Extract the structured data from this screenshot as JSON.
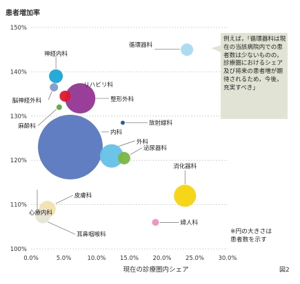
{
  "chart_data": {
    "type": "scatter",
    "title": "",
    "ylabel": "患者増加率",
    "xlabel": "現在の診療圏内シェア",
    "figure_label": "図2",
    "xlim": [
      0,
      30
    ],
    "ylim": [
      100,
      150
    ],
    "x_ticks": [
      "0.0%",
      "5.0%",
      "10.0%",
      "15.0%",
      "20.0%",
      "25.0%",
      "30.0%"
    ],
    "y_ticks": [
      "100%",
      "110%",
      "120%",
      "130%",
      "140%",
      "150%"
    ],
    "grid": true,
    "annotation": "例えば，「循環器科は現在の当該病院内での患者数は少ないものの，診療圏におけるシェア及び将来の患者増が期待されるため，今後，充実すべき」",
    "note": "※円の大きさは\n患者数を示す",
    "points": [
      {
        "name": "循環器科",
        "x": 23.8,
        "y": 145.0,
        "r": 9,
        "color": "#a9d9ee"
      },
      {
        "name": "神経内科",
        "x": 3.8,
        "y": 139.0,
        "r": 10,
        "color": "#1aa6d6"
      },
      {
        "name": "脳神経外科",
        "x": 3.5,
        "y": 136.5,
        "r": 6,
        "color": "#7f9bc8"
      },
      {
        "name": "リハビリ科",
        "x": 5.2,
        "y": 134.5,
        "r": 8,
        "color": "#e3172c"
      },
      {
        "name": "整形外科",
        "x": 7.5,
        "y": 134.0,
        "r": 22,
        "color": "#933594"
      },
      {
        "name": "麻酔科",
        "x": 4.3,
        "y": 132.0,
        "r": 4,
        "color": "#5aab3c"
      },
      {
        "name": "放射線科",
        "x": 14.0,
        "y": 128.5,
        "r": 3,
        "color": "#1f4f9c"
      },
      {
        "name": "内科",
        "x": 6.0,
        "y": 123.0,
        "r": 47,
        "color": "#5877c0"
      },
      {
        "name": "外科",
        "x": 12.3,
        "y": 121.0,
        "r": 17,
        "color": "#64c2e8"
      },
      {
        "name": "泌尿器科",
        "x": 14.2,
        "y": 120.5,
        "r": 9,
        "color": "#7ab642"
      },
      {
        "name": "心療内科",
        "x": 6.0,
        "y": 123.0,
        "r": 0,
        "color": "#5877c0"
      },
      {
        "name": "消化器科",
        "x": 23.5,
        "y": 112.0,
        "r": 16,
        "color": "#f7d40e"
      },
      {
        "name": "皮膚科",
        "x": 2.5,
        "y": 109.0,
        "r": 12,
        "color": "#f3e2ac"
      },
      {
        "name": "耳鼻咽喉科",
        "x": 1.8,
        "y": 107.5,
        "r": 11,
        "color": "#e7e5d6"
      },
      {
        "name": "婦人科",
        "x": 19.0,
        "y": 106.0,
        "r": 5,
        "color": "#ef8fbd"
      }
    ]
  }
}
